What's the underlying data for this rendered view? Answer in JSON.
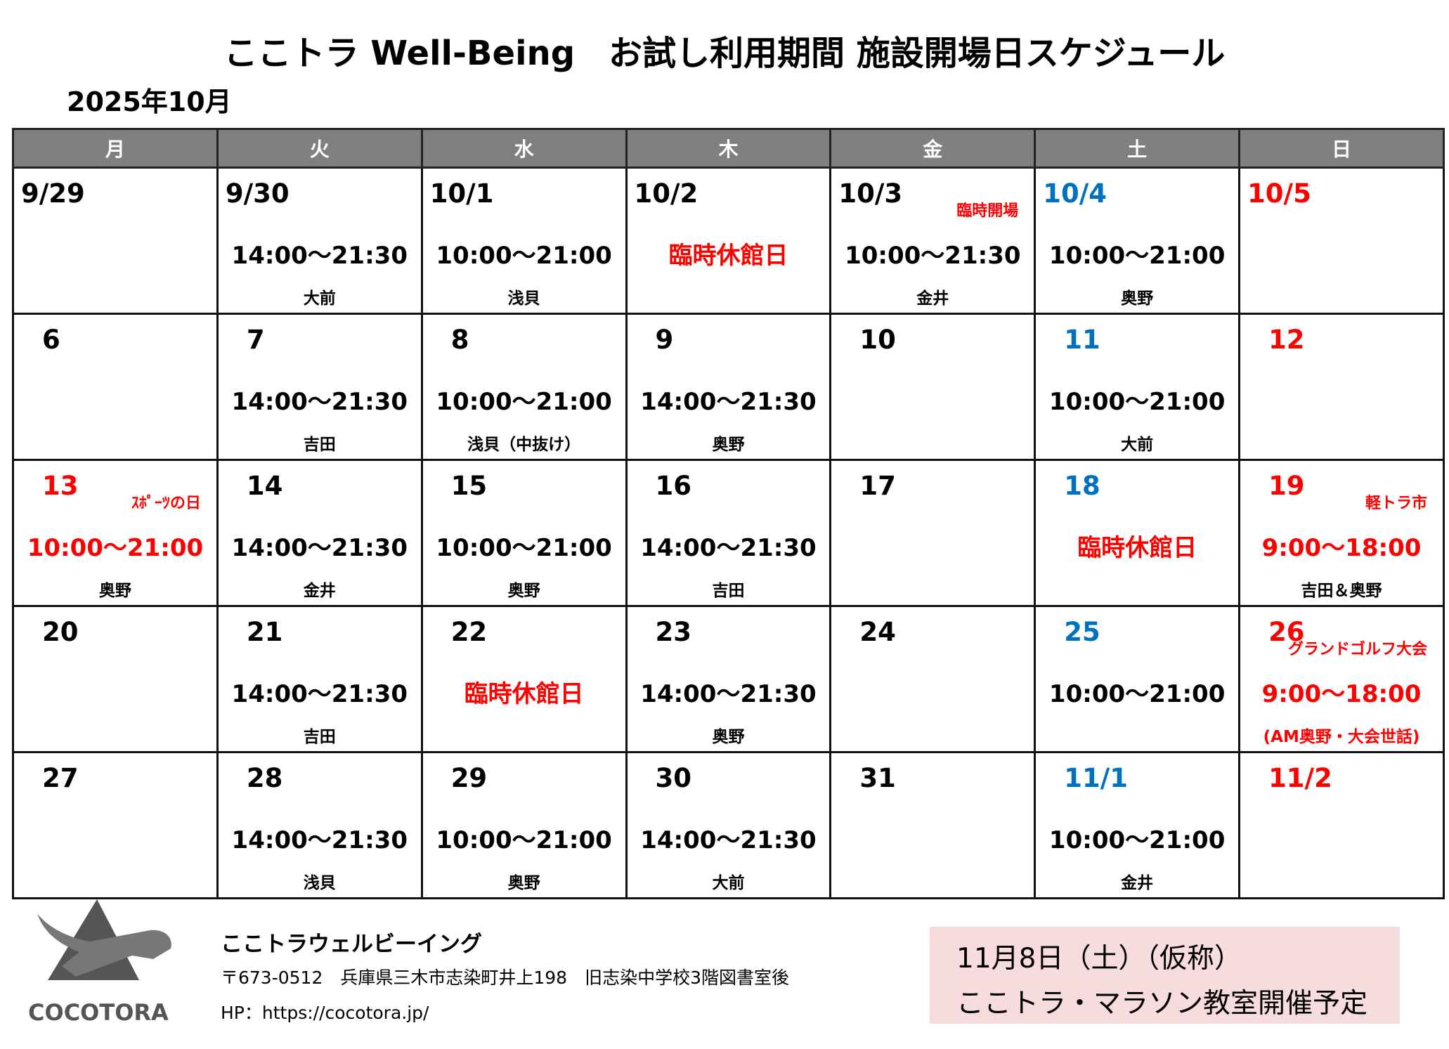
{
  "title": "ここトラ Well-Being　お試し利用期間 施設開場日スケジュール",
  "month": "2025年10月",
  "weekdays": [
    "月",
    "火",
    "水",
    "木",
    "金",
    "土",
    "日"
  ],
  "colors": {
    "header_bg": "#808080",
    "saturday": "#0070c0",
    "sunday_holiday": "#ff0000"
  },
  "weeks": [
    [
      {
        "date": "9/29"
      },
      {
        "date": "9/30",
        "time": "14:00～21:30",
        "staff": "大前"
      },
      {
        "date": "10/1",
        "time": "10:00～21:00",
        "staff": "浅貝"
      },
      {
        "date": "10/2",
        "time": "臨時休館日",
        "time_color": "red"
      },
      {
        "date": "10/3",
        "note": "臨時開場",
        "time": "10:00～21:30",
        "staff": "金井"
      },
      {
        "date": "10/4",
        "date_color": "blue",
        "time": "10:00～21:00",
        "staff": "奥野"
      },
      {
        "date": "10/5",
        "date_color": "red"
      }
    ],
    [
      {
        "date": "6"
      },
      {
        "date": "7",
        "time": "14:00～21:30",
        "staff": "吉田"
      },
      {
        "date": "8",
        "time": "10:00～21:00",
        "staff": "浅貝（中抜け）"
      },
      {
        "date": "9",
        "time": "14:00～21:30",
        "staff": "奥野"
      },
      {
        "date": "10"
      },
      {
        "date": "11",
        "date_color": "blue",
        "time": "10:00～21:00",
        "staff": "大前"
      },
      {
        "date": "12",
        "date_color": "red"
      }
    ],
    [
      {
        "date": "13",
        "date_color": "red",
        "note": "ｽﾎﾟｰﾂの日",
        "time": "10:00～21:00",
        "time_color": "red",
        "staff": "奥野"
      },
      {
        "date": "14",
        "time": "14:00～21:30",
        "staff": "金井"
      },
      {
        "date": "15",
        "time": "10:00～21:00",
        "staff": "奥野"
      },
      {
        "date": "16",
        "time": "14:00～21:30",
        "staff": "吉田"
      },
      {
        "date": "17"
      },
      {
        "date": "18",
        "date_color": "blue",
        "time": "臨時休館日",
        "time_color": "red"
      },
      {
        "date": "19",
        "date_color": "red",
        "note": "軽トラ市",
        "time": "9:00～18:00",
        "time_color": "red",
        "staff": "吉田＆奥野"
      }
    ],
    [
      {
        "date": "20"
      },
      {
        "date": "21",
        "time": "14:00～21:30",
        "staff": "吉田"
      },
      {
        "date": "22",
        "time": "臨時休館日",
        "time_color": "red"
      },
      {
        "date": "23",
        "time": "14:00～21:30",
        "staff": "奥野"
      },
      {
        "date": "24"
      },
      {
        "date": "25",
        "date_color": "blue",
        "time": "10:00～21:00"
      },
      {
        "date": "26",
        "date_color": "red",
        "note": "グランドゴルフ大会",
        "time": "9:00～18:00",
        "time_color": "red",
        "staff": "(AM奥野・大会世話)",
        "staff_color": "red"
      }
    ],
    [
      {
        "date": "27"
      },
      {
        "date": "28",
        "time": "14:00～21:30",
        "staff": "浅貝"
      },
      {
        "date": "29",
        "time": "10:00～21:00",
        "staff": "奥野"
      },
      {
        "date": "30",
        "time": "14:00～21:30",
        "staff": "大前"
      },
      {
        "date": "31"
      },
      {
        "date": "11/1",
        "date_color": "blue",
        "time": "10:00～21:00",
        "staff": "金井"
      },
      {
        "date": "11/2",
        "date_color": "red"
      }
    ]
  ],
  "footer": {
    "logo_text": "COCOTORA",
    "org": "ここトラウェルビーイング",
    "address": "〒673-0512　兵庫県三木市志染町井上198　旧志染中学校3階図書室後",
    "hp": "HP：https://cocotora.jp/"
  },
  "notice": {
    "line1": "11月8日（土）（仮称）",
    "line2": "ここトラ・マラソン教室開催予定"
  }
}
